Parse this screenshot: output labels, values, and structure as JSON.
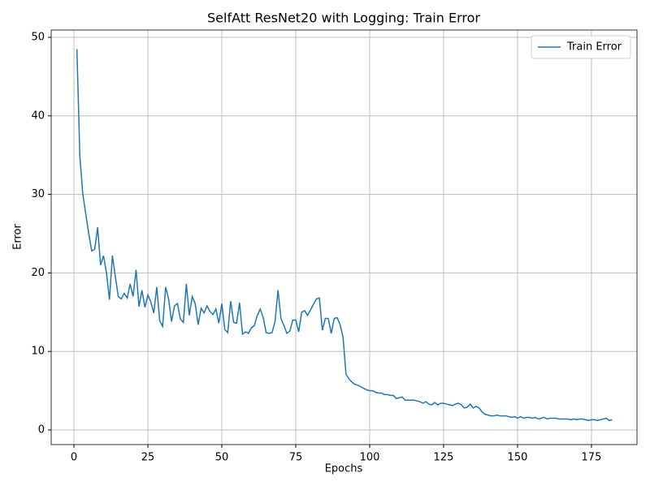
{
  "chart_data": {
    "type": "line",
    "title": "SelfAtt ResNet20 with Logging: Train Error",
    "x_label": "Epochs",
    "y_label": "Error",
    "x": [
      1,
      2,
      3,
      4,
      5,
      6,
      7,
      8,
      9,
      10,
      11,
      12,
      13,
      14,
      15,
      16,
      17,
      18,
      19,
      20,
      21,
      22,
      23,
      24,
      25,
      26,
      27,
      28,
      29,
      30,
      31,
      32,
      33,
      34,
      35,
      36,
      37,
      38,
      39,
      40,
      41,
      42,
      43,
      44,
      45,
      46,
      47,
      48,
      49,
      50,
      51,
      52,
      53,
      54,
      55,
      56,
      57,
      58,
      59,
      60,
      61,
      62,
      63,
      64,
      65,
      66,
      67,
      68,
      69,
      70,
      71,
      72,
      73,
      74,
      75,
      76,
      77,
      78,
      79,
      80,
      81,
      82,
      83,
      84,
      85,
      86,
      87,
      88,
      89,
      90,
      91,
      92,
      93,
      94,
      95,
      96,
      97,
      98,
      99,
      100,
      101,
      102,
      103,
      104,
      105,
      106,
      107,
      108,
      109,
      110,
      111,
      112,
      113,
      114,
      115,
      116,
      117,
      118,
      119,
      120,
      121,
      122,
      123,
      124,
      125,
      126,
      127,
      128,
      129,
      130,
      131,
      132,
      133,
      134,
      135,
      136,
      137,
      138,
      139,
      140,
      141,
      142,
      143,
      144,
      145,
      146,
      147,
      148,
      149,
      150,
      151,
      152,
      153,
      154,
      155,
      156,
      157,
      158,
      159,
      160,
      161,
      162,
      163,
      164,
      165,
      166,
      167,
      168,
      169,
      170,
      171,
      172,
      173,
      174,
      175,
      176,
      177,
      178,
      179,
      180,
      181,
      182
    ],
    "series": [
      {
        "name": "Train Error",
        "color": "#1f77b4",
        "values": [
          48.5,
          34.8,
          30.0,
          27.5,
          25.0,
          22.8,
          23.0,
          25.8,
          21.0,
          22.2,
          20.0,
          16.6,
          22.2,
          19.5,
          17.0,
          16.7,
          17.4,
          16.8,
          18.6,
          17.0,
          20.4,
          15.7,
          17.8,
          15.6,
          17.2,
          16.3,
          14.9,
          18.2,
          13.9,
          13.2,
          18.2,
          16.7,
          13.8,
          15.8,
          16.1,
          14.1,
          13.7,
          18.6,
          14.6,
          17.0,
          16.1,
          13.4,
          15.5,
          14.9,
          15.8,
          15.1,
          14.7,
          15.4,
          13.6,
          16.1,
          12.8,
          12.4,
          16.4,
          13.7,
          13.6,
          16.2,
          12.2,
          12.5,
          12.3,
          13.0,
          13.3,
          14.6,
          15.4,
          14.3,
          12.4,
          12.3,
          12.4,
          13.8,
          17.8,
          14.2,
          13.3,
          12.3,
          12.6,
          14.0,
          14.0,
          12.5,
          15.0,
          15.2,
          14.6,
          15.3,
          16.0,
          16.7,
          16.8,
          12.7,
          14.2,
          14.2,
          12.3,
          14.2,
          14.3,
          13.4,
          11.8,
          7.1,
          6.5,
          6.1,
          5.8,
          5.7,
          5.5,
          5.3,
          5.1,
          5.0,
          5.0,
          4.8,
          4.7,
          4.7,
          4.5,
          4.5,
          4.4,
          4.4,
          4.0,
          4.1,
          4.2,
          3.8,
          3.8,
          3.8,
          3.8,
          3.7,
          3.6,
          3.4,
          3.6,
          3.3,
          3.2,
          3.5,
          3.2,
          3.4,
          3.4,
          3.3,
          3.2,
          3.1,
          3.3,
          3.4,
          3.2,
          2.8,
          2.9,
          3.3,
          2.8,
          3.0,
          2.8,
          2.3,
          2.0,
          1.9,
          1.8,
          1.8,
          1.9,
          1.8,
          1.8,
          1.8,
          1.7,
          1.6,
          1.7,
          1.5,
          1.7,
          1.5,
          1.6,
          1.6,
          1.5,
          1.6,
          1.4,
          1.5,
          1.6,
          1.4,
          1.5,
          1.5,
          1.5,
          1.4,
          1.4,
          1.4,
          1.4,
          1.3,
          1.4,
          1.3,
          1.4,
          1.4,
          1.3,
          1.2,
          1.3,
          1.3,
          1.2,
          1.3,
          1.4,
          1.5,
          1.2,
          1.3
        ]
      }
    ],
    "xlim": [
      -7.7,
      190.4
    ],
    "xticks": [
      0,
      25,
      50,
      75,
      100,
      125,
      150,
      175
    ],
    "ylim": [
      -1.86,
      50.93
    ],
    "yticks": [
      0,
      10,
      20,
      30,
      40,
      50
    ],
    "grid": true,
    "legend": "upper right"
  }
}
